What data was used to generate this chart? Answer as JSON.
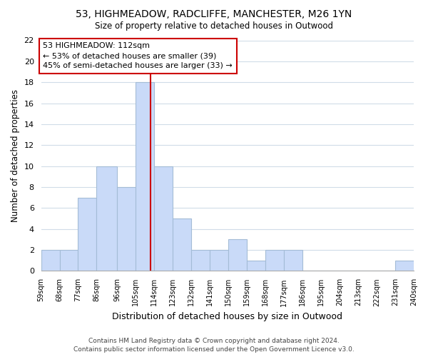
{
  "title": "53, HIGHMEADOW, RADCLIFFE, MANCHESTER, M26 1YN",
  "subtitle": "Size of property relative to detached houses in Outwood",
  "xlabel": "Distribution of detached houses by size in Outwood",
  "ylabel": "Number of detached properties",
  "bin_edges": [
    59,
    68,
    77,
    86,
    96,
    105,
    114,
    123,
    132,
    141,
    150,
    159,
    168,
    177,
    186,
    195,
    204,
    213,
    222,
    231,
    240
  ],
  "bin_labels": [
    "59sqm",
    "68sqm",
    "77sqm",
    "86sqm",
    "96sqm",
    "105sqm",
    "114sqm",
    "123sqm",
    "132sqm",
    "141sqm",
    "150sqm",
    "159sqm",
    "168sqm",
    "177sqm",
    "186sqm",
    "195sqm",
    "204sqm",
    "213sqm",
    "222sqm",
    "231sqm",
    "240sqm"
  ],
  "counts": [
    2,
    2,
    7,
    10,
    8,
    18,
    10,
    5,
    2,
    2,
    3,
    1,
    2,
    2,
    0,
    0,
    0,
    0,
    0,
    1
  ],
  "bar_color": "#c9daf8",
  "bar_edgecolor": "#a4bcd6",
  "marker_value": 112,
  "marker_color": "#cc0000",
  "annotation_title": "53 HIGHMEADOW: 112sqm",
  "annotation_line1": "← 53% of detached houses are smaller (39)",
  "annotation_line2": "45% of semi-detached houses are larger (33) →",
  "annotation_box_edgecolor": "#cc0000",
  "ylim": [
    0,
    22
  ],
  "yticks": [
    0,
    2,
    4,
    6,
    8,
    10,
    12,
    14,
    16,
    18,
    20,
    22
  ],
  "footer_line1": "Contains HM Land Registry data © Crown copyright and database right 2024.",
  "footer_line2": "Contains public sector information licensed under the Open Government Licence v3.0.",
  "bg_color": "#ffffff",
  "grid_color": "#d0dce8"
}
